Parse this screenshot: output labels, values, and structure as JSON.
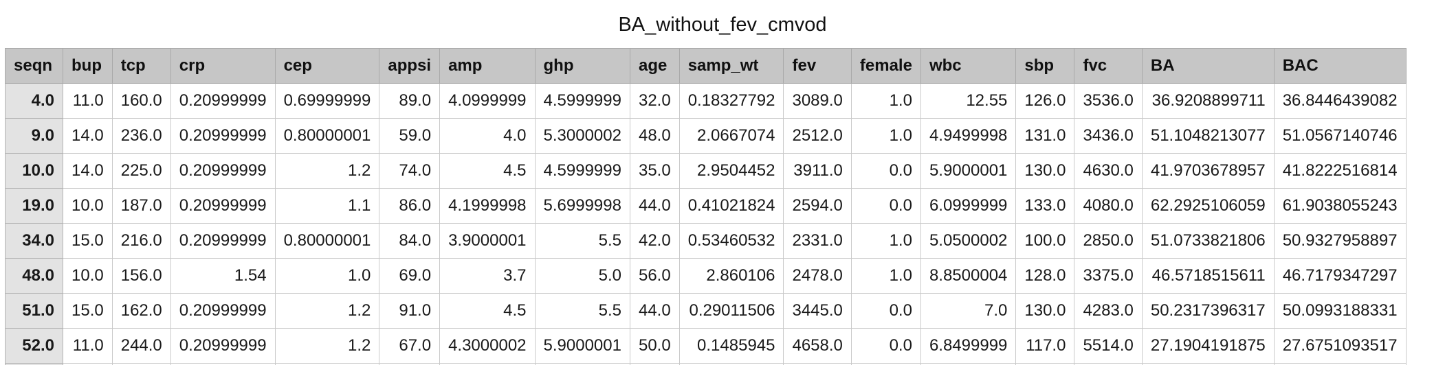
{
  "title": "BA_without_fev_cmvod",
  "columns": [
    "seqn",
    "bup",
    "tcp",
    "crp",
    "cep",
    "appsi",
    "amp",
    "ghp",
    "age",
    "samp_wt",
    "fev",
    "female",
    "wbc",
    "sbp",
    "fvc",
    "BA",
    "BAC"
  ],
  "rows": [
    [
      "4.0",
      "11.0",
      "160.0",
      "0.20999999",
      "0.69999999",
      "89.0",
      "4.0999999",
      "4.5999999",
      "32.0",
      "0.18327792",
      "3089.0",
      "1.0",
      "12.55",
      "126.0",
      "3536.0",
      "36.9208899711",
      "36.8446439082"
    ],
    [
      "9.0",
      "14.0",
      "236.0",
      "0.20999999",
      "0.80000001",
      "59.0",
      "4.0",
      "5.3000002",
      "48.0",
      "2.0667074",
      "2512.0",
      "1.0",
      "4.9499998",
      "131.0",
      "3436.0",
      "51.1048213077",
      "51.0567140746"
    ],
    [
      "10.0",
      "14.0",
      "225.0",
      "0.20999999",
      "1.2",
      "74.0",
      "4.5",
      "4.5999999",
      "35.0",
      "2.9504452",
      "3911.0",
      "0.0",
      "5.9000001",
      "130.0",
      "4630.0",
      "41.9703678957",
      "41.8222516814"
    ],
    [
      "19.0",
      "10.0",
      "187.0",
      "0.20999999",
      "1.1",
      "86.0",
      "4.1999998",
      "5.6999998",
      "44.0",
      "0.41021824",
      "2594.0",
      "0.0",
      "6.0999999",
      "133.0",
      "4080.0",
      "62.2925106059",
      "61.9038055243"
    ],
    [
      "34.0",
      "15.0",
      "216.0",
      "0.20999999",
      "0.80000001",
      "84.0",
      "3.9000001",
      "5.5",
      "42.0",
      "0.53460532",
      "2331.0",
      "1.0",
      "5.0500002",
      "100.0",
      "2850.0",
      "51.0733821806",
      "50.9327958897"
    ],
    [
      "48.0",
      "10.0",
      "156.0",
      "1.54",
      "1.0",
      "69.0",
      "3.7",
      "5.0",
      "56.0",
      "2.860106",
      "2478.0",
      "1.0",
      "8.8500004",
      "128.0",
      "3375.0",
      "46.5718515611",
      "46.7179347297"
    ],
    [
      "51.0",
      "15.0",
      "162.0",
      "0.20999999",
      "1.2",
      "91.0",
      "4.5",
      "5.5",
      "44.0",
      "0.29011506",
      "3445.0",
      "0.0",
      "7.0",
      "130.0",
      "4283.0",
      "50.2317396317",
      "50.0993188331"
    ],
    [
      "52.0",
      "11.0",
      "244.0",
      "0.20999999",
      "1.2",
      "67.0",
      "4.3000002",
      "5.9000001",
      "50.0",
      "0.1485945",
      "4658.0",
      "0.0",
      "6.8499999",
      "117.0",
      "5514.0",
      "27.1904191875",
      "27.6751093517"
    ]
  ]
}
